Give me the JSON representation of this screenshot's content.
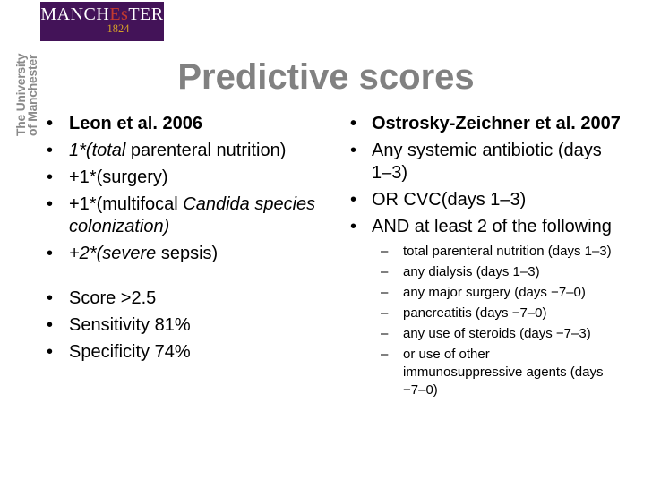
{
  "logo": {
    "wordmark_start": "MANCH",
    "wordmark_accent": "Es",
    "wordmark_end": "TER",
    "year": "1824"
  },
  "sidebar": {
    "university_name": "The University\nof Manchester"
  },
  "title": "Predictive scores",
  "bullets": {
    "main": "•",
    "sub": "–"
  },
  "colors": {
    "logo_bg": "#431358",
    "logo_accent": "#c23a2f",
    "logo_gold": "#d6a028",
    "title_gray": "#818181"
  },
  "left_column": {
    "heading": "Leon et al. 2006",
    "item_total_pn": {
      "italic": "1*(total",
      "regular": " parenteral nutrition)"
    },
    "item_surgery": "+1*(surgery)",
    "item_multifocal": {
      "regular": "+1*(multifocal ",
      "italic": "Candida species colonization)"
    },
    "item_sepsis": {
      "italic": "+2*(severe",
      "regular": " sepsis)"
    },
    "score": "Score >2.5",
    "sensitivity": "Sensitivity 81%",
    "specificity": "Specificity 74%"
  },
  "right_column": {
    "heading": "Ostrosky-Zeichner et al. 2007",
    "item_antibiotic": "Any systemic antibiotic (days\n1–3)",
    "item_cvc": "OR CVC(days 1–3)",
    "item_and": "AND at least 2 of the following",
    "sub_items": [
      "total parenteral nutrition (days 1–3)",
      "any dialysis (days 1–3)",
      "any major surgery (days −7–0)",
      "pancreatitis (days −7–0)",
      "any use of steroids (days −7–3)",
      "or use of other\nimmunosuppressive agents (days\n−7–0)"
    ]
  }
}
